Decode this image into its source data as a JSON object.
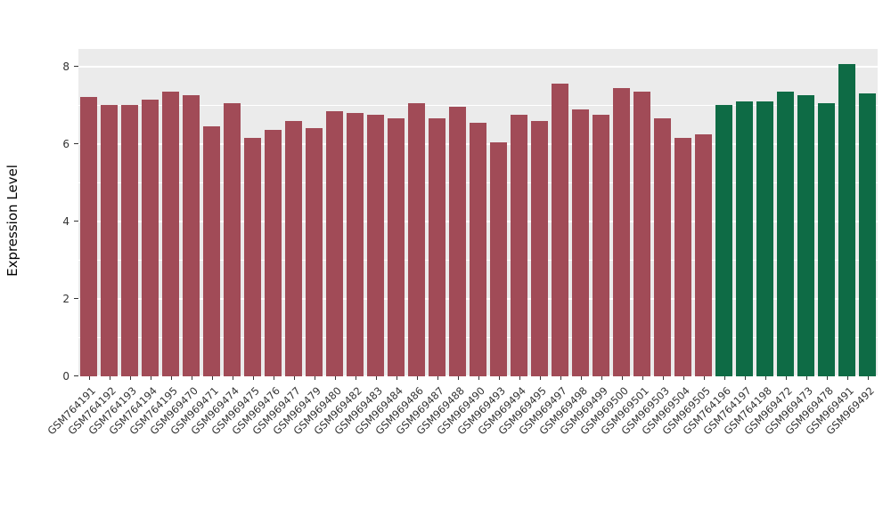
{
  "chart_data": {
    "type": "bar",
    "title": "",
    "xlabel": "",
    "ylabel": "Expression Level",
    "ylim": [
      0,
      8.45
    ],
    "yticks": [
      0,
      2,
      4,
      6,
      8
    ],
    "minor_ticks": [
      1,
      3,
      5,
      7
    ],
    "grid": true,
    "legend_position": "none",
    "panel_bg": "#EBEBEB",
    "grid_color": "#FFFFFF",
    "group_colors": {
      "group1": "#A14B57",
      "group2": "#0E6B45"
    },
    "bars": [
      {
        "label": "GSM764191",
        "value": 7.2,
        "group": "group1"
      },
      {
        "label": "GSM764192",
        "value": 7.0,
        "group": "group1"
      },
      {
        "label": "GSM764193",
        "value": 7.0,
        "group": "group1"
      },
      {
        "label": "GSM764194",
        "value": 7.15,
        "group": "group1"
      },
      {
        "label": "GSM764195",
        "value": 7.35,
        "group": "group1"
      },
      {
        "label": "GSM969470",
        "value": 7.25,
        "group": "group1"
      },
      {
        "label": "GSM969471",
        "value": 6.45,
        "group": "group1"
      },
      {
        "label": "GSM969474",
        "value": 7.05,
        "group": "group1"
      },
      {
        "label": "GSM969475",
        "value": 6.15,
        "group": "group1"
      },
      {
        "label": "GSM969476",
        "value": 6.35,
        "group": "group1"
      },
      {
        "label": "GSM969477",
        "value": 6.6,
        "group": "group1"
      },
      {
        "label": "GSM969479",
        "value": 6.4,
        "group": "group1"
      },
      {
        "label": "GSM969480",
        "value": 6.85,
        "group": "group1"
      },
      {
        "label": "GSM969482",
        "value": 6.8,
        "group": "group1"
      },
      {
        "label": "GSM969483",
        "value": 6.75,
        "group": "group1"
      },
      {
        "label": "GSM969484",
        "value": 6.65,
        "group": "group1"
      },
      {
        "label": "GSM969486",
        "value": 7.05,
        "group": "group1"
      },
      {
        "label": "GSM969487",
        "value": 6.65,
        "group": "group1"
      },
      {
        "label": "GSM969488",
        "value": 6.95,
        "group": "group1"
      },
      {
        "label": "GSM969490",
        "value": 6.55,
        "group": "group1"
      },
      {
        "label": "GSM969493",
        "value": 6.05,
        "group": "group1"
      },
      {
        "label": "GSM969494",
        "value": 6.75,
        "group": "group1"
      },
      {
        "label": "GSM969495",
        "value": 6.6,
        "group": "group1"
      },
      {
        "label": "GSM969497",
        "value": 7.55,
        "group": "group1"
      },
      {
        "label": "GSM969498",
        "value": 6.9,
        "group": "group1"
      },
      {
        "label": "GSM969499",
        "value": 6.75,
        "group": "group1"
      },
      {
        "label": "GSM969500",
        "value": 7.45,
        "group": "group1"
      },
      {
        "label": "GSM969501",
        "value": 7.35,
        "group": "group1"
      },
      {
        "label": "GSM969503",
        "value": 6.65,
        "group": "group1"
      },
      {
        "label": "GSM969504",
        "value": 6.15,
        "group": "group1"
      },
      {
        "label": "GSM969505",
        "value": 6.25,
        "group": "group1"
      },
      {
        "label": "GSM764196",
        "value": 7.0,
        "group": "group2"
      },
      {
        "label": "GSM764197",
        "value": 7.1,
        "group": "group2"
      },
      {
        "label": "GSM764198",
        "value": 7.1,
        "group": "group2"
      },
      {
        "label": "GSM969472",
        "value": 7.35,
        "group": "group2"
      },
      {
        "label": "GSM969473",
        "value": 7.25,
        "group": "group2"
      },
      {
        "label": "GSM969478",
        "value": 7.05,
        "group": "group2"
      },
      {
        "label": "GSM969491",
        "value": 8.05,
        "group": "group2"
      },
      {
        "label": "GSM969492",
        "value": 7.3,
        "group": "group2"
      }
    ]
  }
}
